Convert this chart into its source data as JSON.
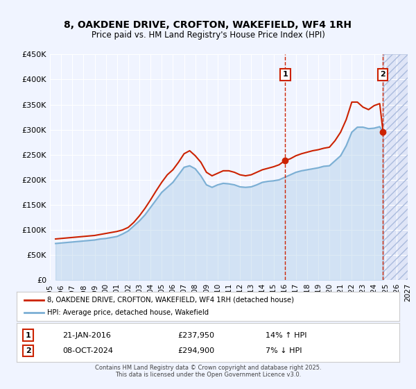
{
  "title": "8, OAKDENE DRIVE, CROFTON, WAKEFIELD, WF4 1RH",
  "subtitle": "Price paid vs. HM Land Registry's House Price Index (HPI)",
  "ylabel_ticks": [
    "£0",
    "£50K",
    "£100K",
    "£150K",
    "£200K",
    "£250K",
    "£300K",
    "£350K",
    "£400K",
    "£450K"
  ],
  "ytick_values": [
    0,
    50000,
    100000,
    150000,
    200000,
    250000,
    300000,
    350000,
    400000,
    450000
  ],
  "ylim": [
    0,
    450000
  ],
  "xlim_start": 1995.0,
  "xlim_end": 2027.0,
  "bg_color": "#f0f4ff",
  "plot_bg_color": "#f0f4ff",
  "grid_color": "#ffffff",
  "hpi_line_color": "#7bafd4",
  "price_line_color": "#cc2200",
  "vline1_x": 2016.05,
  "vline2_x": 2024.77,
  "marker1_x": 2016.05,
  "marker1_y": 237950,
  "marker2_x": 2024.77,
  "marker2_y": 294900,
  "sale1_label": "1",
  "sale2_label": "2",
  "sale1_date": "21-JAN-2016",
  "sale1_price": "£237,950",
  "sale1_hpi": "14% ↑ HPI",
  "sale2_date": "08-OCT-2024",
  "sale2_price": "£294,900",
  "sale2_hpi": "7% ↓ HPI",
  "legend_line1": "8, OAKDENE DRIVE, CROFTON, WAKEFIELD, WF4 1RH (detached house)",
  "legend_line2": "HPI: Average price, detached house, Wakefield",
  "footer": "Contains HM Land Registry data © Crown copyright and database right 2025.\nThis data is licensed under the Open Government Licence v3.0.",
  "hpi_data_x": [
    1995.5,
    1996.0,
    1996.5,
    1997.0,
    1997.5,
    1998.0,
    1998.5,
    1999.0,
    1999.5,
    2000.0,
    2000.5,
    2001.0,
    2001.5,
    2002.0,
    2002.5,
    2003.0,
    2003.5,
    2004.0,
    2004.5,
    2005.0,
    2005.5,
    2006.0,
    2006.5,
    2007.0,
    2007.5,
    2008.0,
    2008.5,
    2009.0,
    2009.5,
    2010.0,
    2010.5,
    2011.0,
    2011.5,
    2012.0,
    2012.5,
    2013.0,
    2013.5,
    2014.0,
    2014.5,
    2015.0,
    2015.5,
    2016.0,
    2016.5,
    2017.0,
    2017.5,
    2018.0,
    2018.5,
    2019.0,
    2019.5,
    2020.0,
    2020.5,
    2021.0,
    2021.5,
    2022.0,
    2022.5,
    2023.0,
    2023.5,
    2024.0,
    2024.5,
    2024.8
  ],
  "hpi_data_y": [
    73000,
    74000,
    75000,
    76000,
    77000,
    78000,
    79000,
    80000,
    82000,
    83000,
    85000,
    87000,
    92000,
    98000,
    108000,
    118000,
    130000,
    145000,
    160000,
    175000,
    185000,
    195000,
    210000,
    225000,
    228000,
    222000,
    208000,
    190000,
    185000,
    190000,
    193000,
    192000,
    190000,
    186000,
    185000,
    186000,
    190000,
    195000,
    197000,
    198000,
    200000,
    205000,
    210000,
    215000,
    218000,
    220000,
    222000,
    224000,
    227000,
    228000,
    238000,
    248000,
    268000,
    295000,
    305000,
    305000,
    302000,
    303000,
    306000,
    295000
  ],
  "price_data_x": [
    1995.5,
    1996.0,
    1996.5,
    1997.0,
    1997.5,
    1998.0,
    1998.5,
    1999.0,
    1999.5,
    2000.0,
    2000.5,
    2001.0,
    2001.5,
    2002.0,
    2002.5,
    2003.0,
    2003.5,
    2004.0,
    2004.5,
    2005.0,
    2005.5,
    2006.0,
    2006.5,
    2007.0,
    2007.5,
    2008.0,
    2008.5,
    2009.0,
    2009.5,
    2010.0,
    2010.5,
    2011.0,
    2011.5,
    2012.0,
    2012.5,
    2013.0,
    2013.5,
    2014.0,
    2014.5,
    2015.0,
    2015.5,
    2016.0,
    2016.5,
    2017.0,
    2017.5,
    2018.0,
    2018.5,
    2019.0,
    2019.5,
    2020.0,
    2020.5,
    2021.0,
    2021.5,
    2022.0,
    2022.5,
    2023.0,
    2023.5,
    2024.0,
    2024.5,
    2024.8
  ],
  "price_data_y": [
    82000,
    83000,
    84000,
    85000,
    86000,
    87000,
    88000,
    89000,
    91000,
    93000,
    95000,
    97000,
    100000,
    105000,
    115000,
    128000,
    143000,
    160000,
    178000,
    195000,
    210000,
    220000,
    235000,
    252000,
    258000,
    248000,
    235000,
    215000,
    208000,
    213000,
    218000,
    218000,
    215000,
    210000,
    208000,
    210000,
    215000,
    220000,
    223000,
    226000,
    230000,
    238000,
    242000,
    248000,
    252000,
    255000,
    258000,
    260000,
    263000,
    265000,
    278000,
    295000,
    320000,
    355000,
    355000,
    345000,
    340000,
    348000,
    352000,
    295000
  ]
}
